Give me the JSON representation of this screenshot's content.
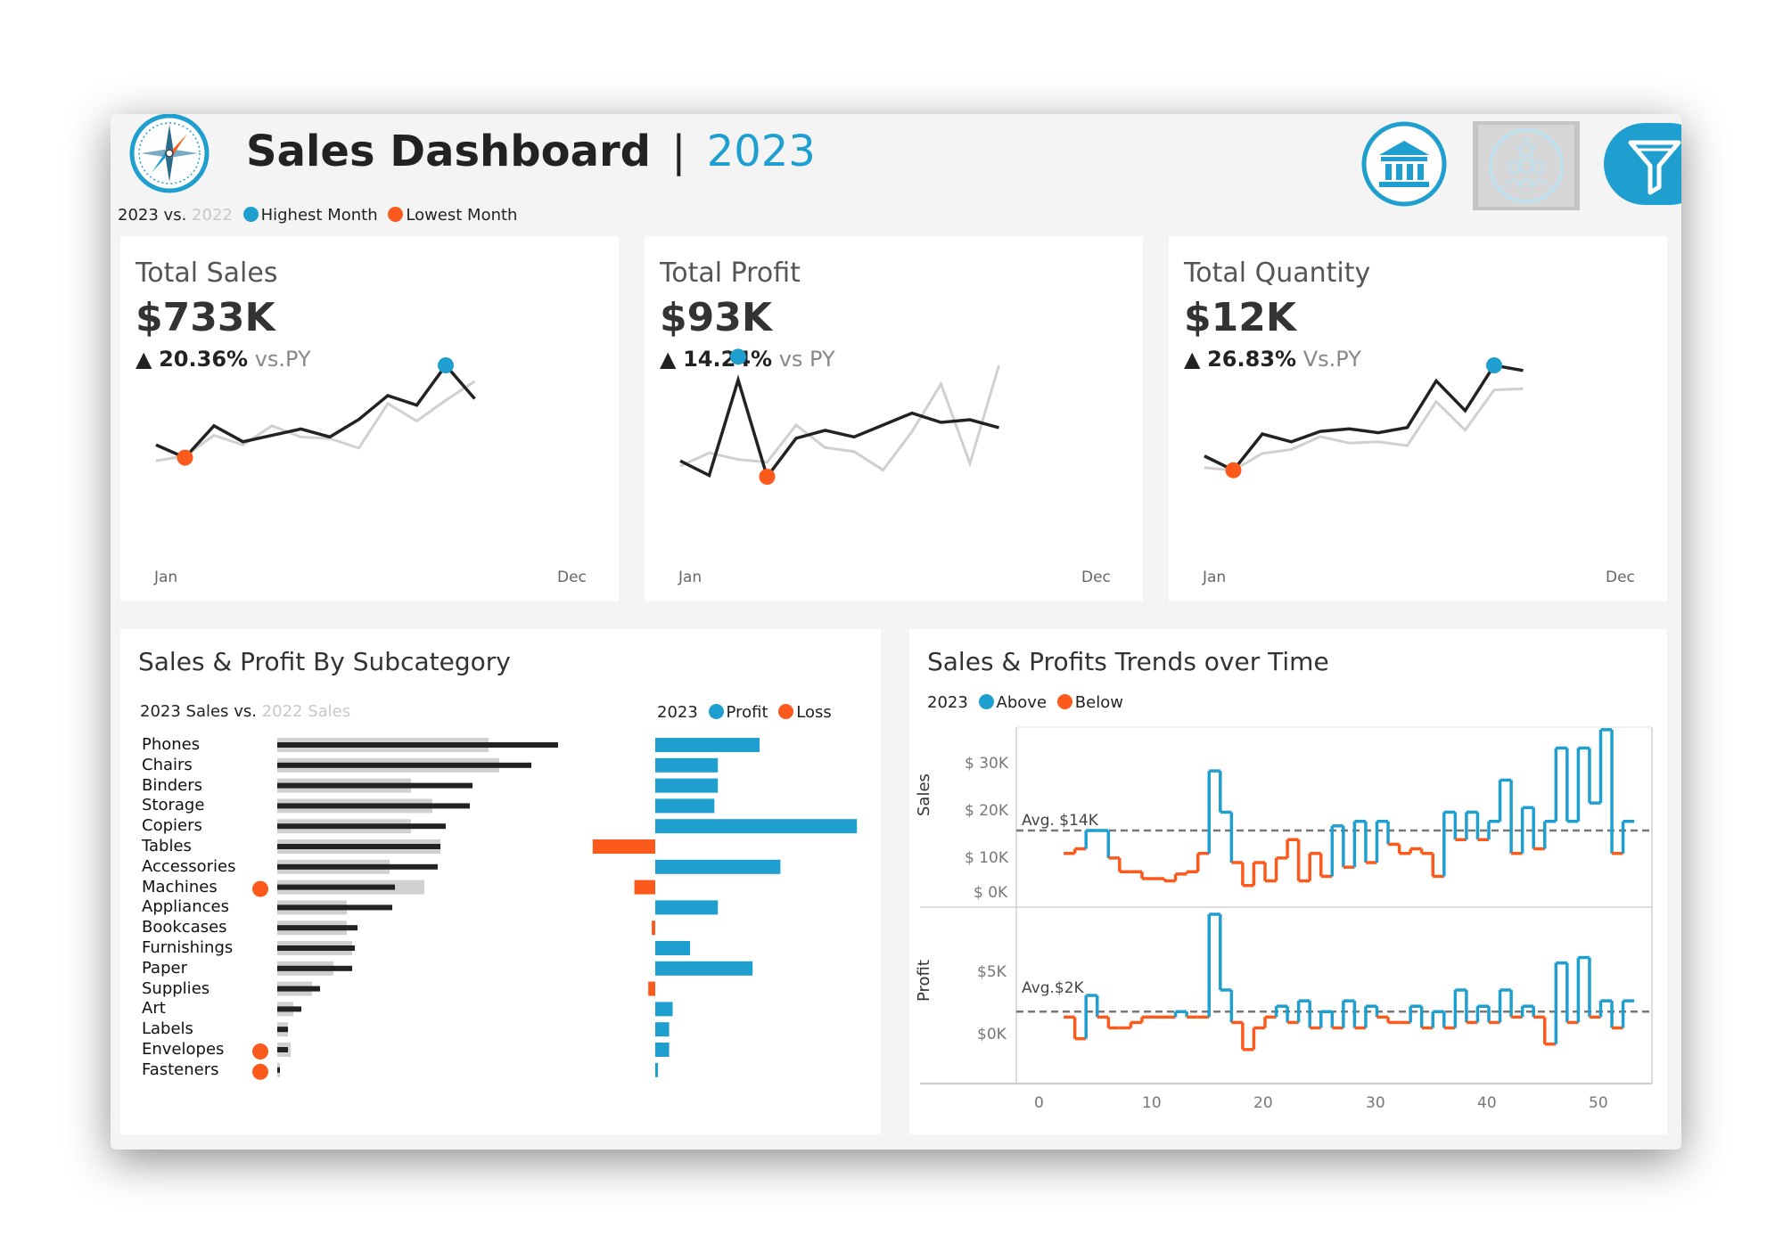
{
  "header": {
    "title": "Sales Dashboard",
    "separator": "|",
    "year": "2023",
    "legend": {
      "current": "2023",
      "vs": "vs.",
      "prior": "2022",
      "highest": "Highest Month",
      "lowest": "Lowest Month"
    },
    "icons": [
      "compass-logo-icon",
      "bank-icon",
      "customers-icon",
      "filter-icon"
    ]
  },
  "colors": {
    "accent": "#1f9fd0",
    "loss": "#fb5a1c",
    "dark": "#222222",
    "light": "#d0d0d0"
  },
  "kpis": [
    {
      "title": "Total Sales",
      "value": "$733K",
      "arrow": "▲",
      "change": "20.36%",
      "vs": "vs.PY",
      "start": "Jan",
      "end": "Dec",
      "current": [
        2.0,
        1.2,
        3.2,
        2.2,
        2.6,
        3.0,
        2.5,
        3.6,
        5.1,
        4.5,
        7.0,
        4.9
      ],
      "prior": [
        1.0,
        1.3,
        2.6,
        2.0,
        3.2,
        2.5,
        2.4,
        1.8,
        4.6,
        3.5,
        4.8,
        6.0
      ],
      "high_index": 10,
      "low_index": 1
    },
    {
      "title": "Total Profit",
      "value": "$93K",
      "arrow": "▲",
      "change": "14.24%",
      "vs": "vs PY",
      "start": "Jan",
      "end": "Dec",
      "current": [
        1.2,
        0.1,
        7.3,
        0.0,
        2.9,
        3.5,
        3.0,
        3.9,
        4.8,
        4.1,
        4.3,
        3.7
      ],
      "prior": [
        0.8,
        1.8,
        1.3,
        1.1,
        3.9,
        2.2,
        1.9,
        0.5,
        3.4,
        7.0,
        1.0,
        8.4
      ],
      "high_index": 2,
      "low_index": 3
    },
    {
      "title": "Total Quantity",
      "value": "$12K",
      "arrow": "▲",
      "change": "26.83%",
      "vs": "Vs.PY",
      "start": "Jan",
      "end": "Dec",
      "current": [
        1.6,
        0.5,
        3.3,
        2.7,
        3.5,
        3.7,
        3.4,
        3.8,
        7.4,
        5.1,
        8.6,
        8.2
      ],
      "prior": [
        0.7,
        0.5,
        1.8,
        2.1,
        3.1,
        2.6,
        2.7,
        2.4,
        5.8,
        3.6,
        6.7,
        6.8
      ],
      "high_index": 10,
      "low_index": 1
    }
  ],
  "subcategory": {
    "title": "Sales & Profit By Subcategory",
    "legend_left": {
      "current": "2023 Sales",
      "vs": "vs.",
      "prior": "2022 Sales"
    },
    "legend_right": {
      "current": "2023",
      "profit": "Profit",
      "loss": "Loss"
    }
  },
  "trends": {
    "title": "Sales & Profits Trends over Time",
    "legend": {
      "current": "2023",
      "above": "Above",
      "below": "Below"
    },
    "sales_label": "Sales",
    "profit_label": "Profit",
    "sales_avg_label": "Avg. $14K",
    "profit_avg_label": "Avg.$2K",
    "sales_ticks": [
      "$ 30K",
      "$ 20K",
      "$ 10K",
      "$ 0K"
    ],
    "profit_ticks": [
      "$5K",
      "$0K"
    ],
    "x_ticks": [
      "0",
      "10",
      "20",
      "30",
      "40",
      "50"
    ]
  },
  "chart_data": [
    {
      "type": "bar",
      "title": "Sales & Profit By Subcategory",
      "categories": [
        "Phones",
        "Chairs",
        "Binders",
        "Storage",
        "Copiers",
        "Tables",
        "Accessories",
        "Machines",
        "Appliances",
        "Bookcases",
        "Furnishings",
        "Paper",
        "Supplies",
        "Art",
        "Labels",
        "Envelopes",
        "Fasteners"
      ],
      "series": [
        {
          "name": "2023 Sales",
          "values": [
            105,
            95,
            73,
            72,
            63,
            61,
            60,
            44,
            43,
            30,
            29,
            28,
            16,
            9,
            4,
            4,
            1
          ]
        },
        {
          "name": "2022 Sales",
          "values": [
            79,
            83,
            50,
            58,
            50,
            61,
            42,
            55,
            26,
            26,
            28,
            21,
            13,
            6,
            4,
            5,
            1
          ]
        },
        {
          "name": "Profit",
          "values": [
            15,
            9,
            9,
            8.5,
            29,
            -9,
            18,
            -3,
            9,
            -0.5,
            5,
            14,
            -1,
            2.5,
            2,
            2,
            0.4
          ]
        }
      ],
      "loss_markers": [
        "Machines",
        "Envelopes",
        "Fasteners"
      ]
    },
    {
      "type": "line",
      "title": "Sales & Profits Trends over Time",
      "x": [
        2,
        3,
        4,
        5,
        6,
        7,
        8,
        9,
        10,
        11,
        12,
        13,
        14,
        15,
        16,
        17,
        18,
        19,
        20,
        21,
        22,
        23,
        24,
        25,
        26,
        27,
        28,
        29,
        30,
        31,
        32,
        33,
        34,
        35,
        36,
        37,
        38,
        39,
        40,
        41,
        42,
        43,
        44,
        45,
        46,
        47,
        48,
        49,
        50,
        51,
        52
      ],
      "series": [
        {
          "name": "Sales",
          "values": [
            9,
            10,
            14,
            14,
            8,
            5,
            5,
            3.5,
            3.5,
            3,
            4.5,
            5,
            9,
            27,
            18,
            7,
            2,
            7,
            3,
            8,
            12,
            3,
            9,
            4,
            15,
            6,
            16,
            7,
            16,
            11,
            9,
            10,
            9,
            4,
            18,
            12,
            18,
            12,
            16,
            25,
            9,
            19,
            10,
            16,
            32,
            16,
            32,
            20,
            36,
            9,
            16
          ],
          "average": 14,
          "ylim": [
            0,
            35
          ]
        },
        {
          "name": "Profit",
          "values": [
            1.5,
            -0.5,
            3.5,
            1.5,
            0.5,
            0.5,
            1,
            1.5,
            1.5,
            1.5,
            2,
            1.5,
            1.5,
            11,
            4,
            1,
            -1.5,
            0.5,
            1.5,
            2.5,
            1,
            3,
            0.5,
            2,
            0.5,
            3,
            0.5,
            2.5,
            1.5,
            1,
            1,
            2.5,
            0.5,
            2,
            0.5,
            4,
            1,
            2.5,
            1,
            4,
            1.5,
            2.5,
            1.5,
            -1,
            6.5,
            1,
            7,
            1.5,
            3,
            0.5,
            3
          ],
          "average": 2,
          "ylim": [
            -3,
            11
          ]
        }
      ]
    }
  ]
}
